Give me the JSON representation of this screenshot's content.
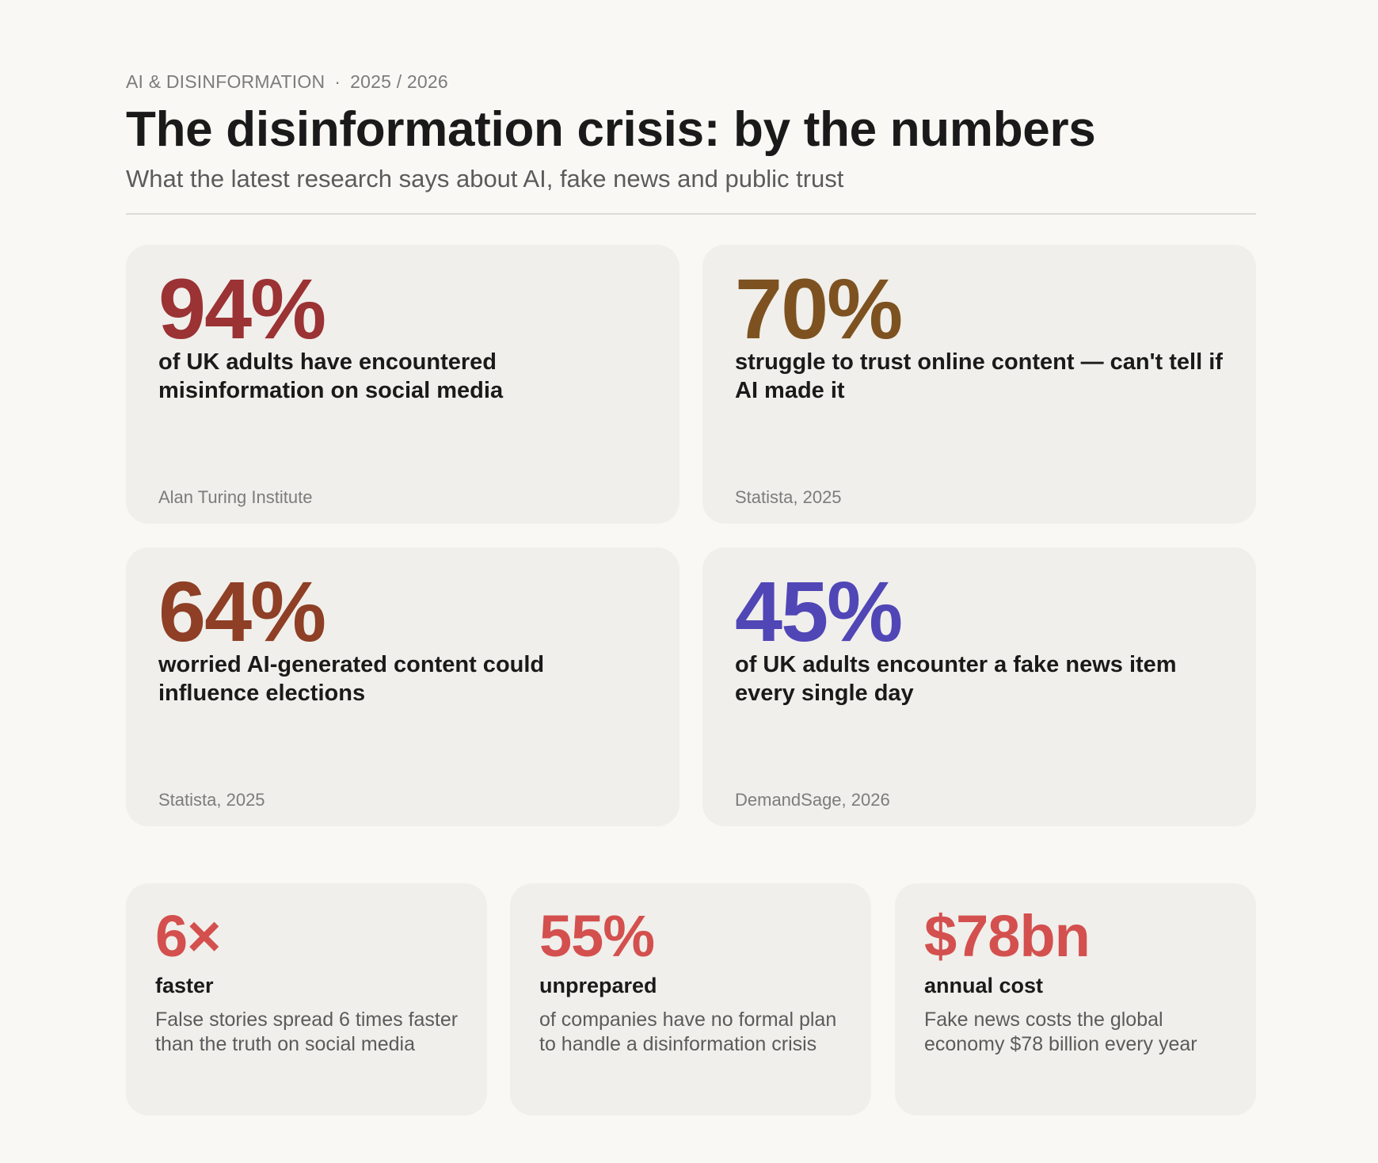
{
  "header": {
    "kicker": "AI & DISINFORMATION",
    "separator": "·",
    "period": "2025 / 2026",
    "title": "The disinformation crisis: by the numbers",
    "subtitle": "What the latest research says about AI, fake news and public trust"
  },
  "big_stats": [
    {
      "value": "94%",
      "description": "of UK adults have encountered misinformation on social media",
      "source": "Alan Turing Institute",
      "color": "#9b3234"
    },
    {
      "value": "70%",
      "description": "struggle to trust online content — can't tell if AI made it",
      "source": "Statista, 2025",
      "color": "#7d5220"
    },
    {
      "value": "64%",
      "description": "worried AI-generated content could influence elections",
      "source": "Statista, 2025",
      "color": "#8e3f25"
    },
    {
      "value": "45%",
      "description": "of UK adults encounter a fake news item every single day",
      "source": "DemandSage, 2026",
      "color": "#5046b6"
    }
  ],
  "small_stats": [
    {
      "value": "6×",
      "label": "faster",
      "description": "False stories spread 6 times faster than the truth on social media",
      "color": "#d3504e"
    },
    {
      "value": "55%",
      "label": "unprepared",
      "description": "of companies have no formal plan to handle a disinformation crisis",
      "color": "#d3504e"
    },
    {
      "value": "$78bn",
      "label": "annual cost",
      "description": "Fake news costs the global economy $78 billion every year",
      "color": "#d3504e"
    }
  ]
}
